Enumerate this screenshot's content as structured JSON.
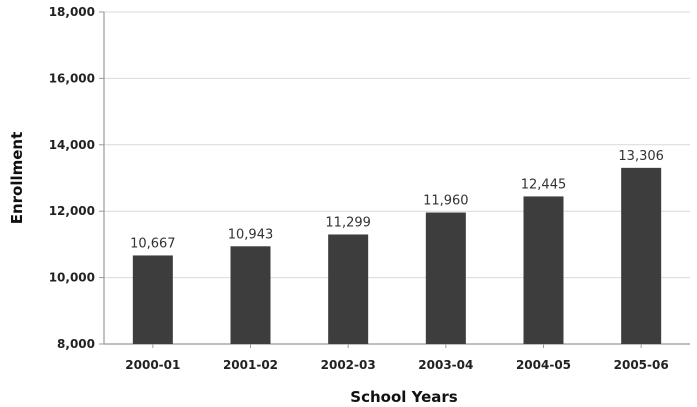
{
  "chart_data": {
    "type": "bar",
    "title": "",
    "xlabel": "School Years",
    "ylabel": "Enrollment",
    "categories": [
      "2000-01",
      "2001-02",
      "2002-03",
      "2003-04",
      "2004-05",
      "2005-06"
    ],
    "values": [
      10667,
      10943,
      11299,
      11960,
      12445,
      13306
    ],
    "value_labels": [
      "10,667",
      "10,943",
      "11,299",
      "11,960",
      "12,445",
      "13,306"
    ],
    "ylim": [
      8000,
      18000
    ],
    "yticks": [
      8000,
      10000,
      12000,
      14000,
      16000,
      18000
    ],
    "ytick_labels": [
      "8,000",
      "10,000",
      "12,000",
      "14,000",
      "16,000",
      "18,000"
    ],
    "grid": true,
    "bar_color": "#3d3d3d",
    "grid_color": "#d9d9d9",
    "axis_color": "#9a9a9a"
  }
}
